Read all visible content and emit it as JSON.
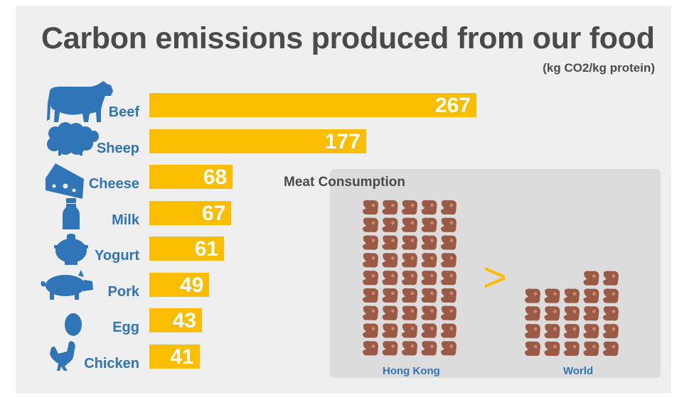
{
  "title": "Carbon emissions produced from our food",
  "unit": "(kg CO2/kg protein)",
  "colors": {
    "bar": "#fbbd00",
    "label": "#2f75b7",
    "title": "#4a4a4a",
    "meat": "#9b5a45",
    "inset_bg": "#dcdcdc"
  },
  "icons": [
    "cow-icon",
    "sheep-icon",
    "cheese-icon",
    "milk-bottle-icon",
    "yogurt-icon",
    "pig-icon",
    "egg-icon",
    "chicken-icon"
  ],
  "chart_data": [
    {
      "type": "bar",
      "orientation": "horizontal",
      "title": "Carbon emissions produced from our food",
      "ylabel": "(kg CO2/kg protein)",
      "categories": [
        "Beef",
        "Sheep",
        "Cheese",
        "Milk",
        "Yogurt",
        "Pork",
        "Egg",
        "Chicken"
      ],
      "values": [
        267,
        177,
        68,
        67,
        61,
        49,
        43,
        41
      ],
      "data_labels": [
        "267",
        "177",
        "68",
        "67",
        "61",
        "49",
        "43",
        "41"
      ]
    },
    {
      "type": "pictogram",
      "title": "Meat Consumption",
      "categories": [
        "Hong Kong",
        "World"
      ],
      "values": [
        45,
        22
      ],
      "unit_icon": "meat-chop-icon",
      "comparison_symbol": ">"
    }
  ]
}
